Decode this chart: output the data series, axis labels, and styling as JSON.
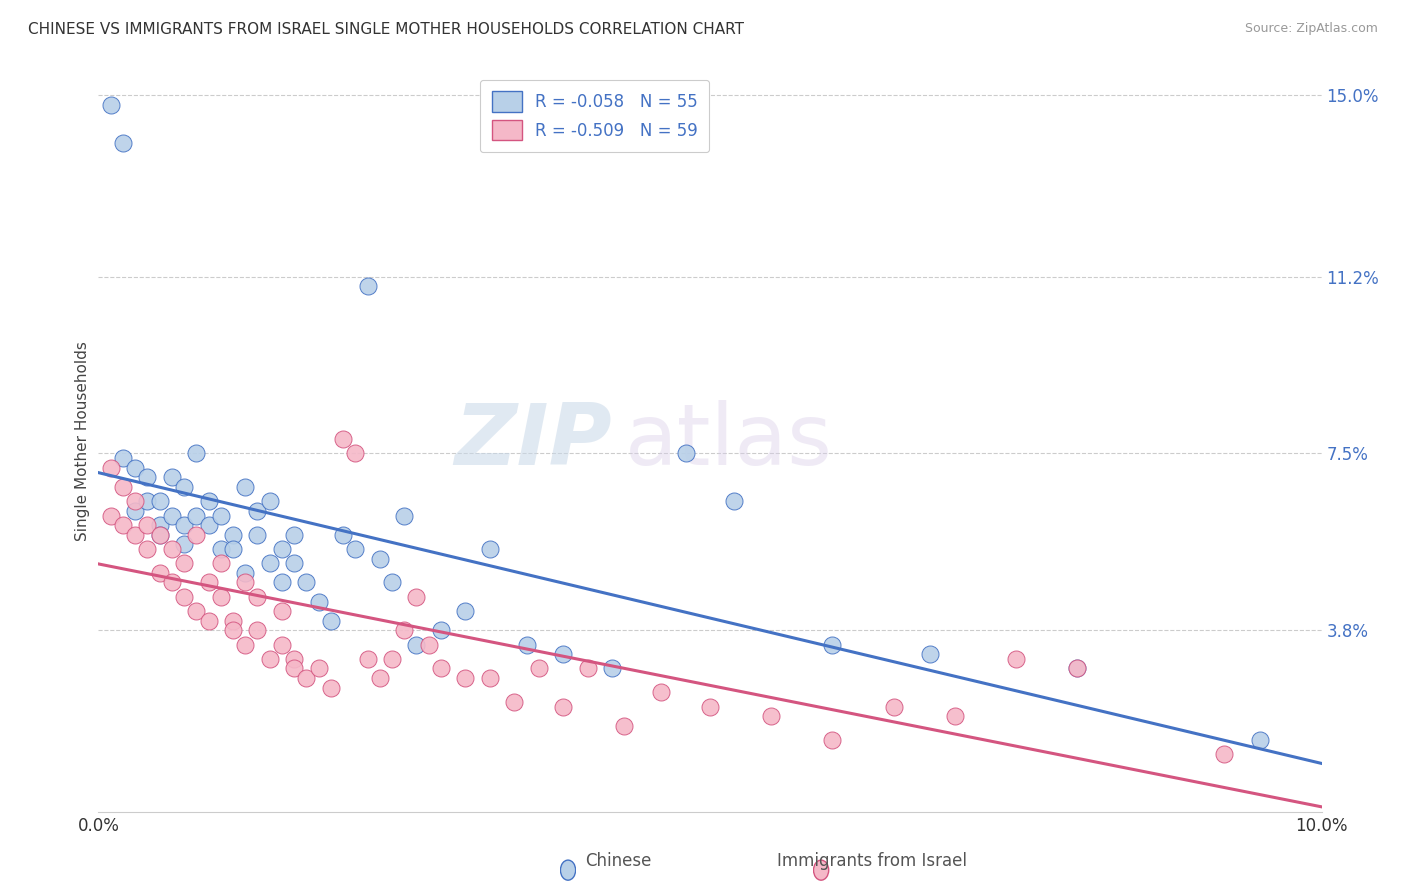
{
  "title": "CHINESE VS IMMIGRANTS FROM ISRAEL SINGLE MOTHER HOUSEHOLDS CORRELATION CHART",
  "source": "Source: ZipAtlas.com",
  "ylabel": "Single Mother Households",
  "xlabel_chinese": "Chinese",
  "xlabel_israel": "Immigrants from Israel",
  "xlim": [
    0.0,
    0.1
  ],
  "ylim": [
    0.0,
    0.155
  ],
  "yticks": [
    0.038,
    0.075,
    0.112,
    0.15
  ],
  "ytick_labels": [
    "3.8%",
    "7.5%",
    "11.2%",
    "15.0%"
  ],
  "xticks": [
    0.0,
    0.02,
    0.04,
    0.06,
    0.08,
    0.1
  ],
  "xtick_labels": [
    "0.0%",
    "",
    "",
    "",
    "",
    "10.0%"
  ],
  "chinese_R": -0.058,
  "chinese_N": 55,
  "israel_R": -0.509,
  "israel_N": 59,
  "chinese_color": "#b8d0e8",
  "israel_color": "#f5b8c8",
  "chinese_line_color": "#4472c4",
  "israel_line_color": "#d45580",
  "watermark_zip": "ZIP",
  "watermark_atlas": "atlas",
  "title_fontsize": 11,
  "chinese_x": [
    0.001,
    0.002,
    0.002,
    0.003,
    0.003,
    0.004,
    0.004,
    0.005,
    0.005,
    0.005,
    0.006,
    0.006,
    0.007,
    0.007,
    0.007,
    0.008,
    0.008,
    0.009,
    0.009,
    0.01,
    0.01,
    0.011,
    0.011,
    0.012,
    0.012,
    0.013,
    0.013,
    0.014,
    0.014,
    0.015,
    0.015,
    0.016,
    0.016,
    0.017,
    0.018,
    0.019,
    0.02,
    0.021,
    0.022,
    0.023,
    0.024,
    0.025,
    0.026,
    0.028,
    0.03,
    0.032,
    0.035,
    0.038,
    0.042,
    0.048,
    0.052,
    0.06,
    0.068,
    0.08,
    0.095
  ],
  "chinese_y": [
    0.148,
    0.14,
    0.074,
    0.072,
    0.063,
    0.07,
    0.065,
    0.065,
    0.06,
    0.058,
    0.07,
    0.062,
    0.068,
    0.06,
    0.056,
    0.075,
    0.062,
    0.065,
    0.06,
    0.062,
    0.055,
    0.058,
    0.055,
    0.068,
    0.05,
    0.063,
    0.058,
    0.052,
    0.065,
    0.055,
    0.048,
    0.058,
    0.052,
    0.048,
    0.044,
    0.04,
    0.058,
    0.055,
    0.11,
    0.053,
    0.048,
    0.062,
    0.035,
    0.038,
    0.042,
    0.055,
    0.035,
    0.033,
    0.03,
    0.075,
    0.065,
    0.035,
    0.033,
    0.03,
    0.015
  ],
  "israel_x": [
    0.001,
    0.001,
    0.002,
    0.002,
    0.003,
    0.003,
    0.004,
    0.004,
    0.005,
    0.005,
    0.006,
    0.006,
    0.007,
    0.007,
    0.008,
    0.008,
    0.009,
    0.009,
    0.01,
    0.01,
    0.011,
    0.011,
    0.012,
    0.012,
    0.013,
    0.013,
    0.014,
    0.015,
    0.015,
    0.016,
    0.016,
    0.017,
    0.018,
    0.019,
    0.02,
    0.021,
    0.022,
    0.023,
    0.024,
    0.025,
    0.026,
    0.027,
    0.028,
    0.03,
    0.032,
    0.034,
    0.036,
    0.038,
    0.04,
    0.043,
    0.046,
    0.05,
    0.055,
    0.06,
    0.065,
    0.07,
    0.075,
    0.08,
    0.092
  ],
  "israel_y": [
    0.072,
    0.062,
    0.068,
    0.06,
    0.065,
    0.058,
    0.06,
    0.055,
    0.058,
    0.05,
    0.055,
    0.048,
    0.052,
    0.045,
    0.058,
    0.042,
    0.048,
    0.04,
    0.052,
    0.045,
    0.04,
    0.038,
    0.048,
    0.035,
    0.045,
    0.038,
    0.032,
    0.042,
    0.035,
    0.032,
    0.03,
    0.028,
    0.03,
    0.026,
    0.078,
    0.075,
    0.032,
    0.028,
    0.032,
    0.038,
    0.045,
    0.035,
    0.03,
    0.028,
    0.028,
    0.023,
    0.03,
    0.022,
    0.03,
    0.018,
    0.025,
    0.022,
    0.02,
    0.015,
    0.022,
    0.02,
    0.032,
    0.03,
    0.012
  ]
}
